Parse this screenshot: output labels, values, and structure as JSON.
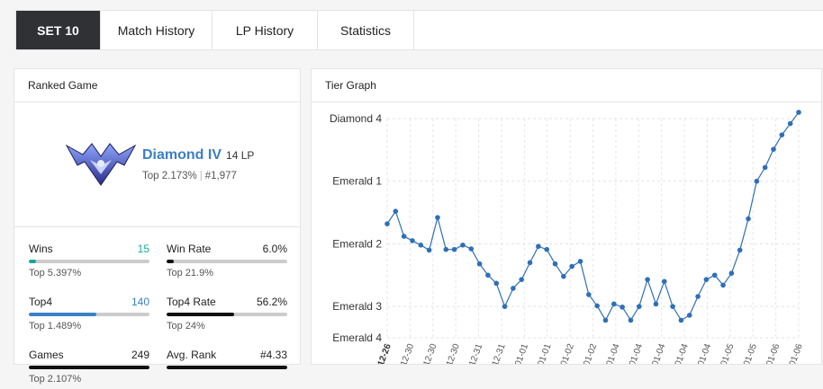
{
  "tabs": [
    {
      "label": "SET 10",
      "active": true
    },
    {
      "label": "Match History",
      "active": false
    },
    {
      "label": "LP History",
      "active": false
    },
    {
      "label": "Statistics",
      "active": false
    }
  ],
  "ranked": {
    "title": "Ranked Game",
    "emblem_icon": "diamond-emblem",
    "tier": "Diamond IV",
    "lp": "14 LP",
    "top_percent": "Top 2.173%",
    "rank": "#1,977",
    "stats": {
      "wins": {
        "label": "Wins",
        "value": "15",
        "sub": "Top 5.397%",
        "fill": 0.06,
        "fill_color": "#1aa89a"
      },
      "win_rate": {
        "label": "Win Rate",
        "value": "6.0%",
        "sub": "Top 21.9%",
        "fill": 0.06,
        "fill_color": "#111111"
      },
      "top4": {
        "label": "Top4",
        "value": "140",
        "sub": "Top 1.489%",
        "fill": 0.56,
        "fill_color": "#3b82c4"
      },
      "top4_rate": {
        "label": "Top4 Rate",
        "value": "56.2%",
        "sub": "Top 24%",
        "fill": 0.562,
        "fill_color": "#111111"
      },
      "games": {
        "label": "Games",
        "value": "249",
        "sub": "Top 2.107%",
        "fill": 1.0,
        "fill_color": "#111111"
      },
      "avg_rank": {
        "label": "Avg. Rank",
        "value": "#4.33",
        "sub": "",
        "fill": 1.0,
        "fill_color": "#111111"
      }
    }
  },
  "tier_graph": {
    "title": "Tier Graph",
    "line_color": "#2f6fb8"
  },
  "chart_data": {
    "type": "line",
    "y_tick_labels": [
      "Diamond 4",
      "Emerald 1",
      "Emerald 2",
      "Emerald 3",
      "Emerald 4"
    ],
    "y_ticks": [
      400,
      300,
      200,
      100,
      50
    ],
    "ylim": [
      50,
      400
    ],
    "x_labels": [
      "12-26",
      "12-30",
      "12-30",
      "12-30",
      "12-31",
      "12-31",
      "01-01",
      "01-01",
      "01-02",
      "01-02",
      "01-04",
      "01-04",
      "01-04",
      "01-04",
      "01-04",
      "01-05",
      "01-05",
      "01-06",
      "01-06"
    ],
    "grid": true,
    "series": [
      {
        "values": [
          232,
          252,
          212,
          205,
          198,
          190,
          242,
          191,
          191,
          198,
          192,
          168,
          150,
          137,
          100,
          129,
          143,
          170,
          196,
          191,
          168,
          148,
          164,
          172,
          119,
          101,
          78,
          104,
          99,
          78,
          100,
          143,
          104,
          140,
          100,
          78,
          86,
          116,
          143,
          150,
          134,
          153,
          190,
          240,
          300,
          322,
          351,
          374,
          392,
          410
        ]
      }
    ]
  }
}
